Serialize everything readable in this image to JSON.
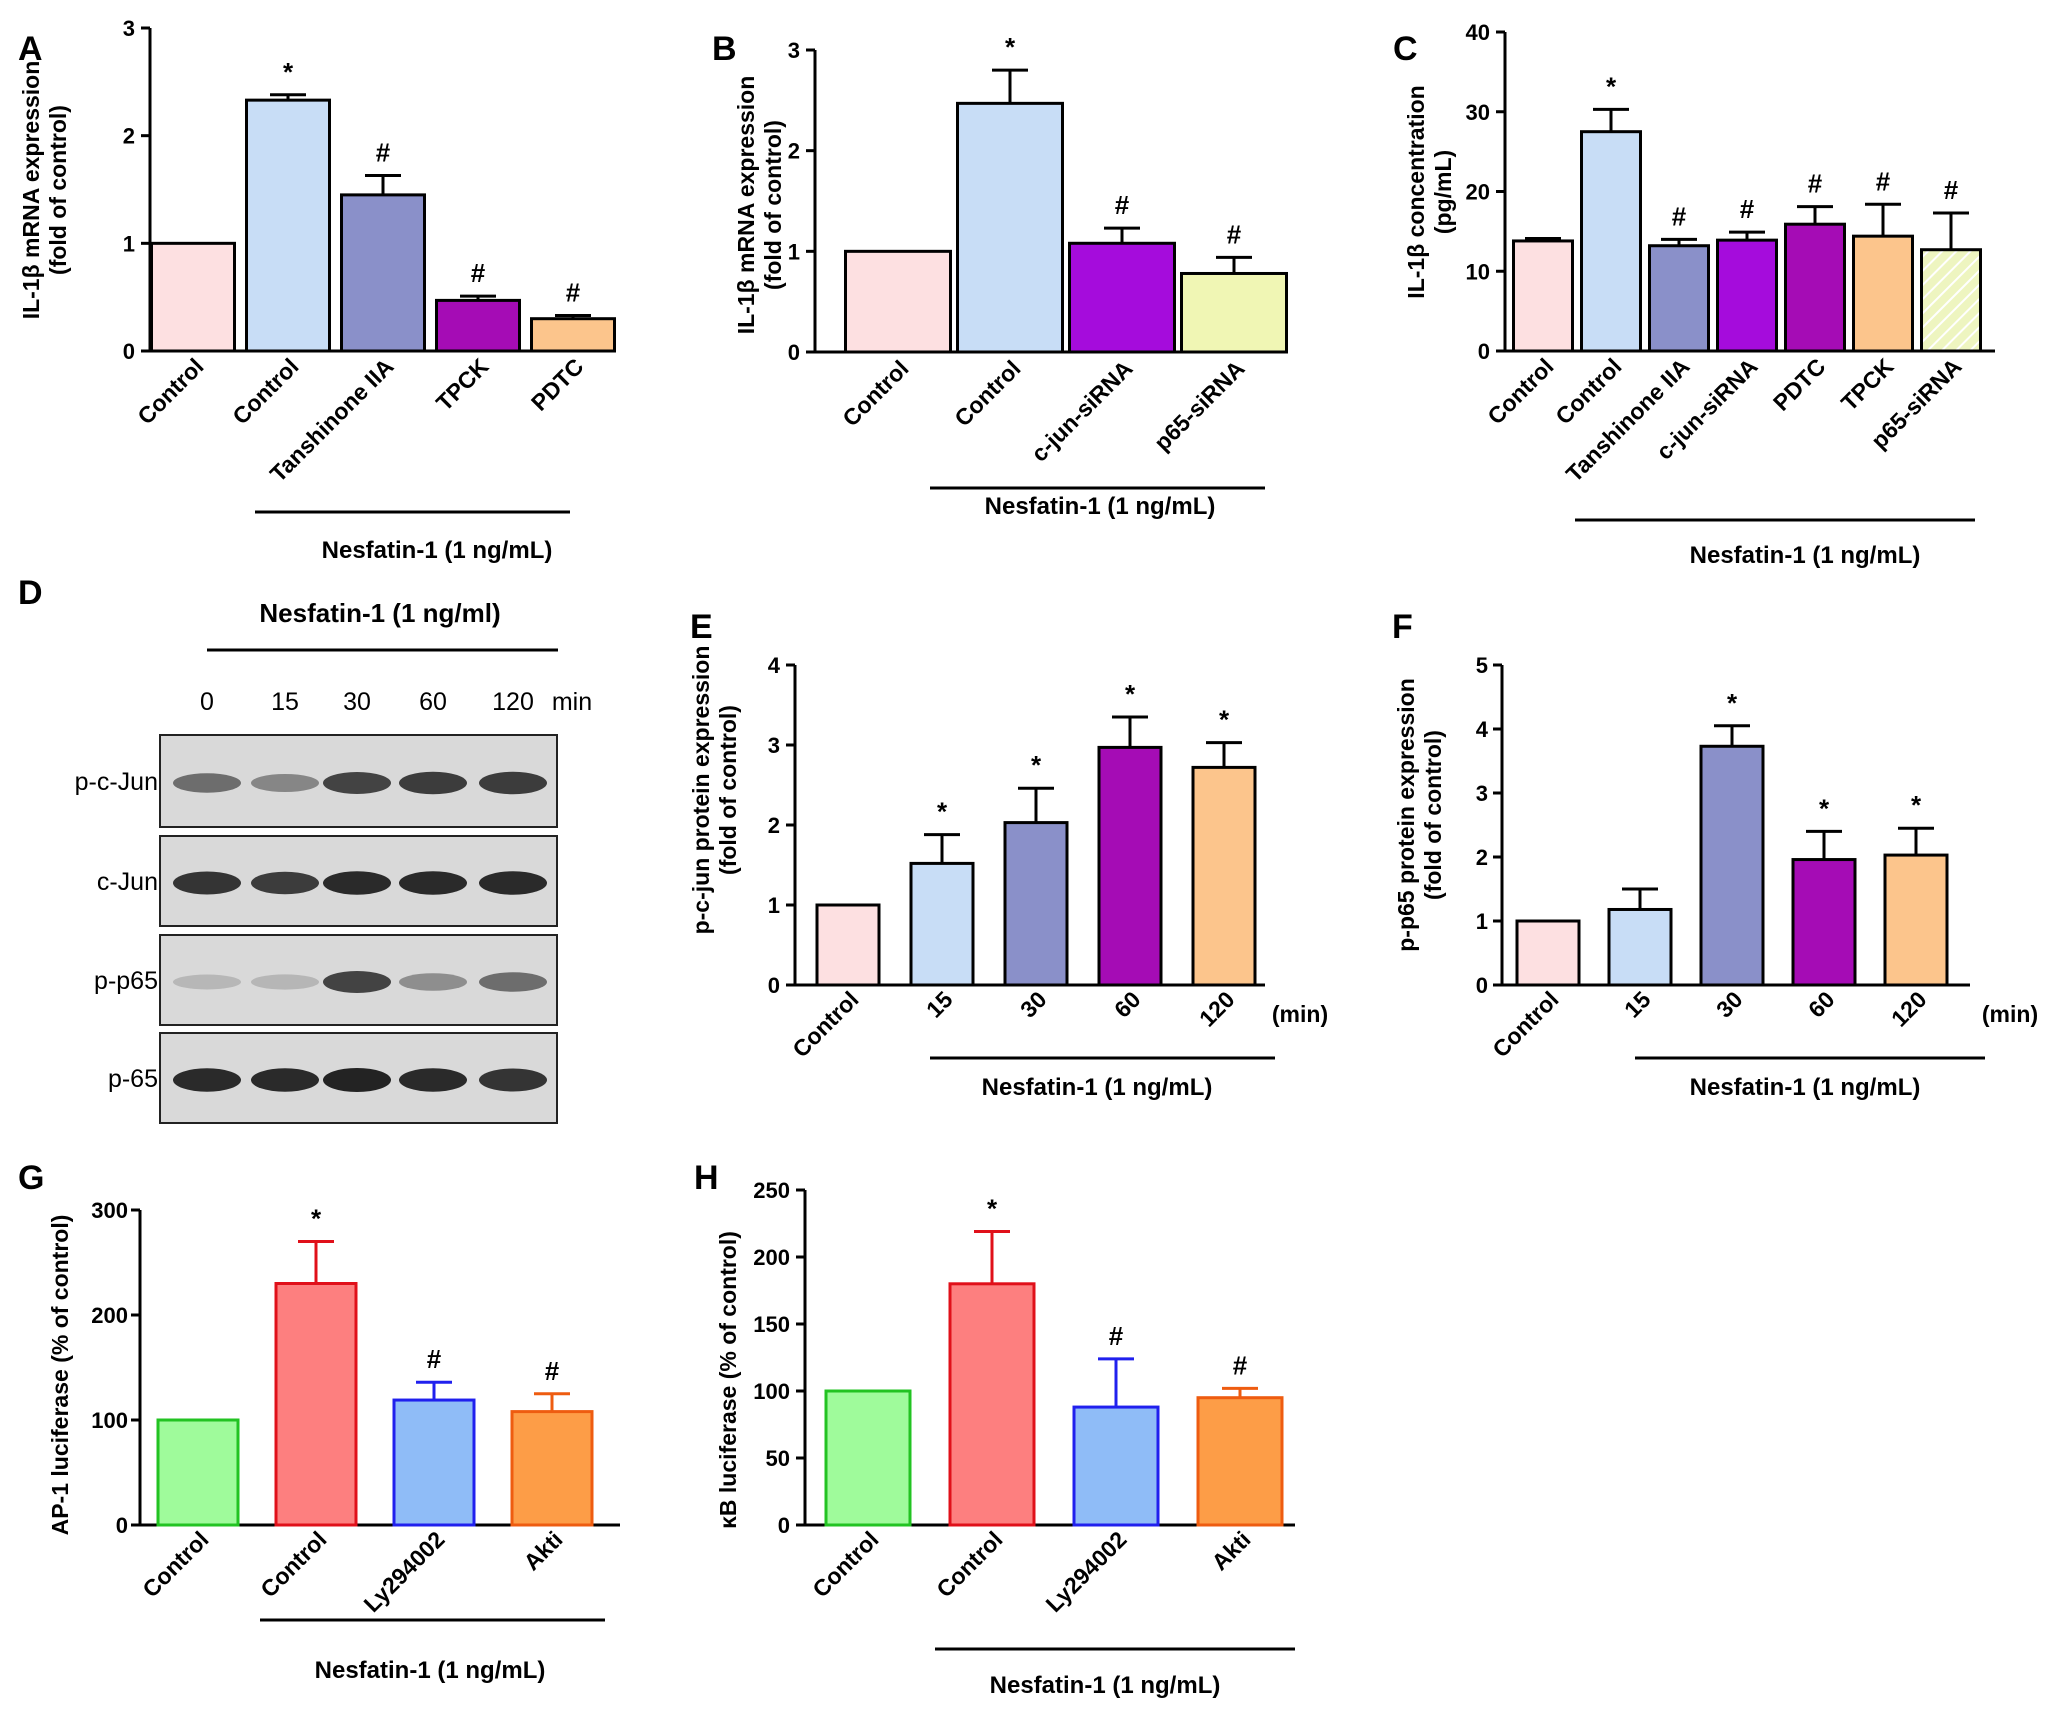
{
  "chart_data": [
    {
      "panel": "A",
      "type": "bar",
      "ylabel": "IL-1β mRNA expression\n(fold of control)",
      "ylim": [
        0,
        3
      ],
      "yticks": [
        0,
        1,
        2,
        3
      ],
      "categories": [
        "Control",
        "Control",
        "Tanshinone IIA",
        "TPCK",
        "PDTC"
      ],
      "values": [
        1.0,
        2.33,
        1.45,
        0.47,
        0.3
      ],
      "errors": [
        0,
        0.05,
        0.18,
        0.04,
        0.03
      ],
      "significance": [
        "",
        "*",
        "#",
        "#",
        "#"
      ],
      "colors": [
        "#fde0e1",
        "#c8ddf6",
        "#8a90c9",
        "#a50cb5",
        "#fcc58c"
      ],
      "group_label": "Nesfatin-1 (1 ng/mL)"
    },
    {
      "panel": "B",
      "type": "bar",
      "ylabel": "IL-1β mRNA expression\n(fold of control)",
      "ylim": [
        0,
        3
      ],
      "yticks": [
        0,
        1,
        2,
        3
      ],
      "categories": [
        "Control",
        "Control",
        "c-jun-siRNA",
        "p65-siRNA"
      ],
      "values": [
        1.0,
        2.47,
        1.08,
        0.78
      ],
      "errors": [
        0,
        0.33,
        0.15,
        0.16
      ],
      "significance": [
        "",
        "*",
        "#",
        "#"
      ],
      "colors": [
        "#fde0e1",
        "#c8ddf6",
        "#a50cdc",
        "#f0f6b4"
      ],
      "group_label": "Nesfatin-1 (1 ng/mL)"
    },
    {
      "panel": "C",
      "type": "bar",
      "ylabel": "IL-1β concentration\n(pg/mL)",
      "ylim": [
        0,
        40
      ],
      "yticks": [
        0,
        10,
        20,
        30,
        40
      ],
      "categories": [
        "Control",
        "Control",
        "Tanshinone IIA",
        "c-jun-siRNA",
        "PDTC",
        "TPCK",
        "p65-siRNA"
      ],
      "values": [
        13.8,
        27.5,
        13.2,
        13.9,
        15.9,
        14.4,
        12.7
      ],
      "errors": [
        0.3,
        2.8,
        0.8,
        1.0,
        2.2,
        4.0,
        4.6
      ],
      "significance": [
        "",
        "*",
        "#",
        "#",
        "#",
        "#",
        "#"
      ],
      "colors": [
        "#fde0e1",
        "#c8ddf6",
        "#8a90c9",
        "#a50cdc",
        "#a50cb5",
        "#fcc58c",
        "#eef5c0"
      ],
      "group_label": "Nesfatin-1 (1 ng/mL)"
    },
    {
      "panel": "E",
      "type": "bar",
      "ylabel": "p-c-jun protein expression\n(fold of control)",
      "ylim": [
        0,
        4
      ],
      "yticks": [
        0,
        1,
        2,
        3,
        4
      ],
      "categories": [
        "Control",
        "15",
        "30",
        "60",
        "120"
      ],
      "values": [
        1.0,
        1.52,
        2.03,
        2.97,
        2.72
      ],
      "errors": [
        0,
        0.36,
        0.43,
        0.38,
        0.31
      ],
      "significance": [
        "",
        "*",
        "*",
        "*",
        "*"
      ],
      "colors": [
        "#fde0e1",
        "#c8ddf6",
        "#8a90c9",
        "#a50cb5",
        "#fcc58c"
      ],
      "unit_label": "(min)",
      "group_label": "Nesfatin-1 (1 ng/mL)"
    },
    {
      "panel": "F",
      "type": "bar",
      "ylabel": "p-p65 protein expression\n(fold of control)",
      "ylim": [
        0,
        5
      ],
      "yticks": [
        0,
        1,
        2,
        3,
        4,
        5
      ],
      "categories": [
        "Control",
        "15",
        "30",
        "60",
        "120"
      ],
      "values": [
        1.0,
        1.18,
        3.73,
        1.96,
        2.03
      ],
      "errors": [
        0,
        0.32,
        0.32,
        0.44,
        0.42
      ],
      "significance": [
        "",
        "",
        "*",
        "*",
        "*"
      ],
      "colors": [
        "#fde0e1",
        "#c8ddf6",
        "#8a90c9",
        "#a50cb5",
        "#fcc58c"
      ],
      "unit_label": "(min)",
      "group_label": "Nesfatin-1 (1 ng/mL)"
    },
    {
      "panel": "G",
      "type": "bar",
      "ylabel": "AP-1 luciferase (% of control)",
      "ylim": [
        0,
        300
      ],
      "yticks": [
        0,
        100,
        200,
        300
      ],
      "categories": [
        "Control",
        "Control",
        "Ly294002",
        "Akti"
      ],
      "values": [
        100,
        230,
        119,
        108
      ],
      "errors": [
        0,
        40,
        17,
        17
      ],
      "significance": [
        "",
        "*",
        "#",
        "#"
      ],
      "colors": [
        "#9ffb9b",
        "#fd7f7f",
        "#8fbcf7",
        "#fd9d47"
      ],
      "edge_colors": [
        "#22c322",
        "#e0101a",
        "#2020ee",
        "#ee5c10"
      ],
      "group_label": "Nesfatin-1 (1 ng/mL)"
    },
    {
      "panel": "H",
      "type": "bar",
      "ylabel": "κB luciferase (% of control)",
      "ylim": [
        0,
        250
      ],
      "yticks": [
        0,
        50,
        100,
        150,
        200,
        250
      ],
      "categories": [
        "Control",
        "Control",
        "Ly294002",
        "Akti"
      ],
      "values": [
        100,
        180,
        88,
        95
      ],
      "errors": [
        0,
        39,
        36,
        7
      ],
      "significance": [
        "",
        "*",
        "#",
        "#"
      ],
      "colors": [
        "#9ffb9b",
        "#fd7f7f",
        "#8fbcf7",
        "#fd9d47"
      ],
      "edge_colors": [
        "#22c322",
        "#e0101a",
        "#2020ee",
        "#ee5c10"
      ],
      "group_label": "Nesfatin-1 (1 ng/mL)"
    }
  ],
  "panel_d": {
    "letter": "D",
    "treatment_label": "Nesfatin-1 (1 ng/ml)",
    "timepoints": [
      "0",
      "15",
      "30",
      "60",
      "120"
    ],
    "time_unit": "min",
    "blots": [
      {
        "label": "p-c-Jun",
        "intensities": [
          0.55,
          0.4,
          0.8,
          0.85,
          0.85
        ]
      },
      {
        "label": "c-Jun",
        "intensities": [
          0.9,
          0.85,
          0.95,
          0.95,
          0.95
        ]
      },
      {
        "label": "p-p65",
        "intensities": [
          0.1,
          0.12,
          0.8,
          0.35,
          0.55
        ]
      },
      {
        "label": "p-65",
        "intensities": [
          0.95,
          0.95,
          1.0,
          0.95,
          0.9
        ]
      }
    ]
  }
}
